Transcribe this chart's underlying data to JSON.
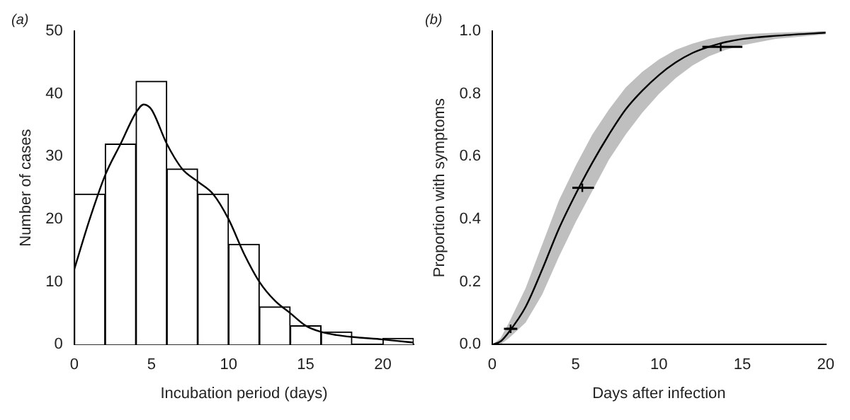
{
  "chart_data": [
    {
      "type": "histogram",
      "title": "(a)",
      "xlabel": "Incubation period (days)",
      "ylabel": "Number of cases",
      "marker": "none",
      "bins": [
        0,
        2,
        4,
        6,
        8,
        10,
        12,
        14,
        16,
        18,
        20,
        22
      ],
      "values": [
        24,
        32,
        42,
        28,
        24,
        16,
        6,
        3,
        2,
        0,
        1
      ],
      "color": "#ffffff",
      "series": [
        {
          "type": "line",
          "color": "#000000",
          "x": [
            0,
            1,
            2,
            3,
            4,
            4.5,
            5,
            6,
            7,
            8,
            9,
            10,
            11,
            12,
            13,
            14,
            15,
            16,
            17,
            18,
            20,
            22
          ],
          "values": [
            12,
            20,
            27,
            32,
            37,
            38.3,
            37.5,
            32,
            28,
            26,
            24,
            20,
            14.5,
            10,
            7,
            5,
            3,
            2,
            1.5,
            1.2,
            0.8,
            0.3
          ]
        }
      ],
      "xlim": [
        0,
        22
      ],
      "xticks": [
        0,
        5,
        10,
        15,
        20
      ],
      "ylim": [
        0,
        50
      ],
      "yticks": [
        0,
        10,
        20,
        30,
        40,
        50
      ]
    },
    {
      "type": "line",
      "title": "(b)",
      "xlabel": "Days after infection",
      "ylabel": "Proportion with symptoms",
      "marker": "none",
      "series": [
        {
          "type": "line",
          "color": "#000000",
          "x": [
            0,
            0.5,
            1,
            2,
            3,
            4,
            5,
            6,
            7,
            8,
            9,
            10,
            11,
            12,
            13,
            14,
            15,
            17,
            20
          ],
          "values": [
            0,
            0.01,
            0.04,
            0.12,
            0.24,
            0.37,
            0.48,
            0.58,
            0.67,
            0.75,
            0.81,
            0.86,
            0.9,
            0.93,
            0.95,
            0.965,
            0.975,
            0.985,
            0.995
          ],
          "lower": [
            0,
            0,
            0.02,
            0.07,
            0.16,
            0.28,
            0.39,
            0.49,
            0.59,
            0.67,
            0.74,
            0.8,
            0.85,
            0.89,
            0.92,
            0.94,
            0.955,
            0.975,
            0.99
          ],
          "upper": [
            0,
            0.02,
            0.07,
            0.18,
            0.32,
            0.46,
            0.57,
            0.67,
            0.75,
            0.82,
            0.87,
            0.91,
            0.94,
            0.96,
            0.975,
            0.985,
            0.99,
            0.995,
            1.0
          ]
        },
        {
          "type": "scatter",
          "color": "#000000",
          "marker": "cross",
          "x": [
            1.1,
            5.4,
            13.7
          ],
          "values": [
            0.05,
            0.5,
            0.95
          ],
          "xerrors": [
            [
              0.7,
              1.5
            ],
            [
              4.8,
              6.1
            ],
            [
              12.6,
              15
            ]
          ]
        }
      ],
      "xlim": [
        0,
        20
      ],
      "xticks": [
        0,
        5,
        10,
        15,
        20
      ],
      "ylim": [
        0,
        1
      ],
      "yticks": [
        {
          "value": 0,
          "label": "0.0"
        },
        0.2,
        0.4,
        0.6,
        0.8,
        {
          "value": 1,
          "label": "1.0"
        }
      ]
    }
  ]
}
